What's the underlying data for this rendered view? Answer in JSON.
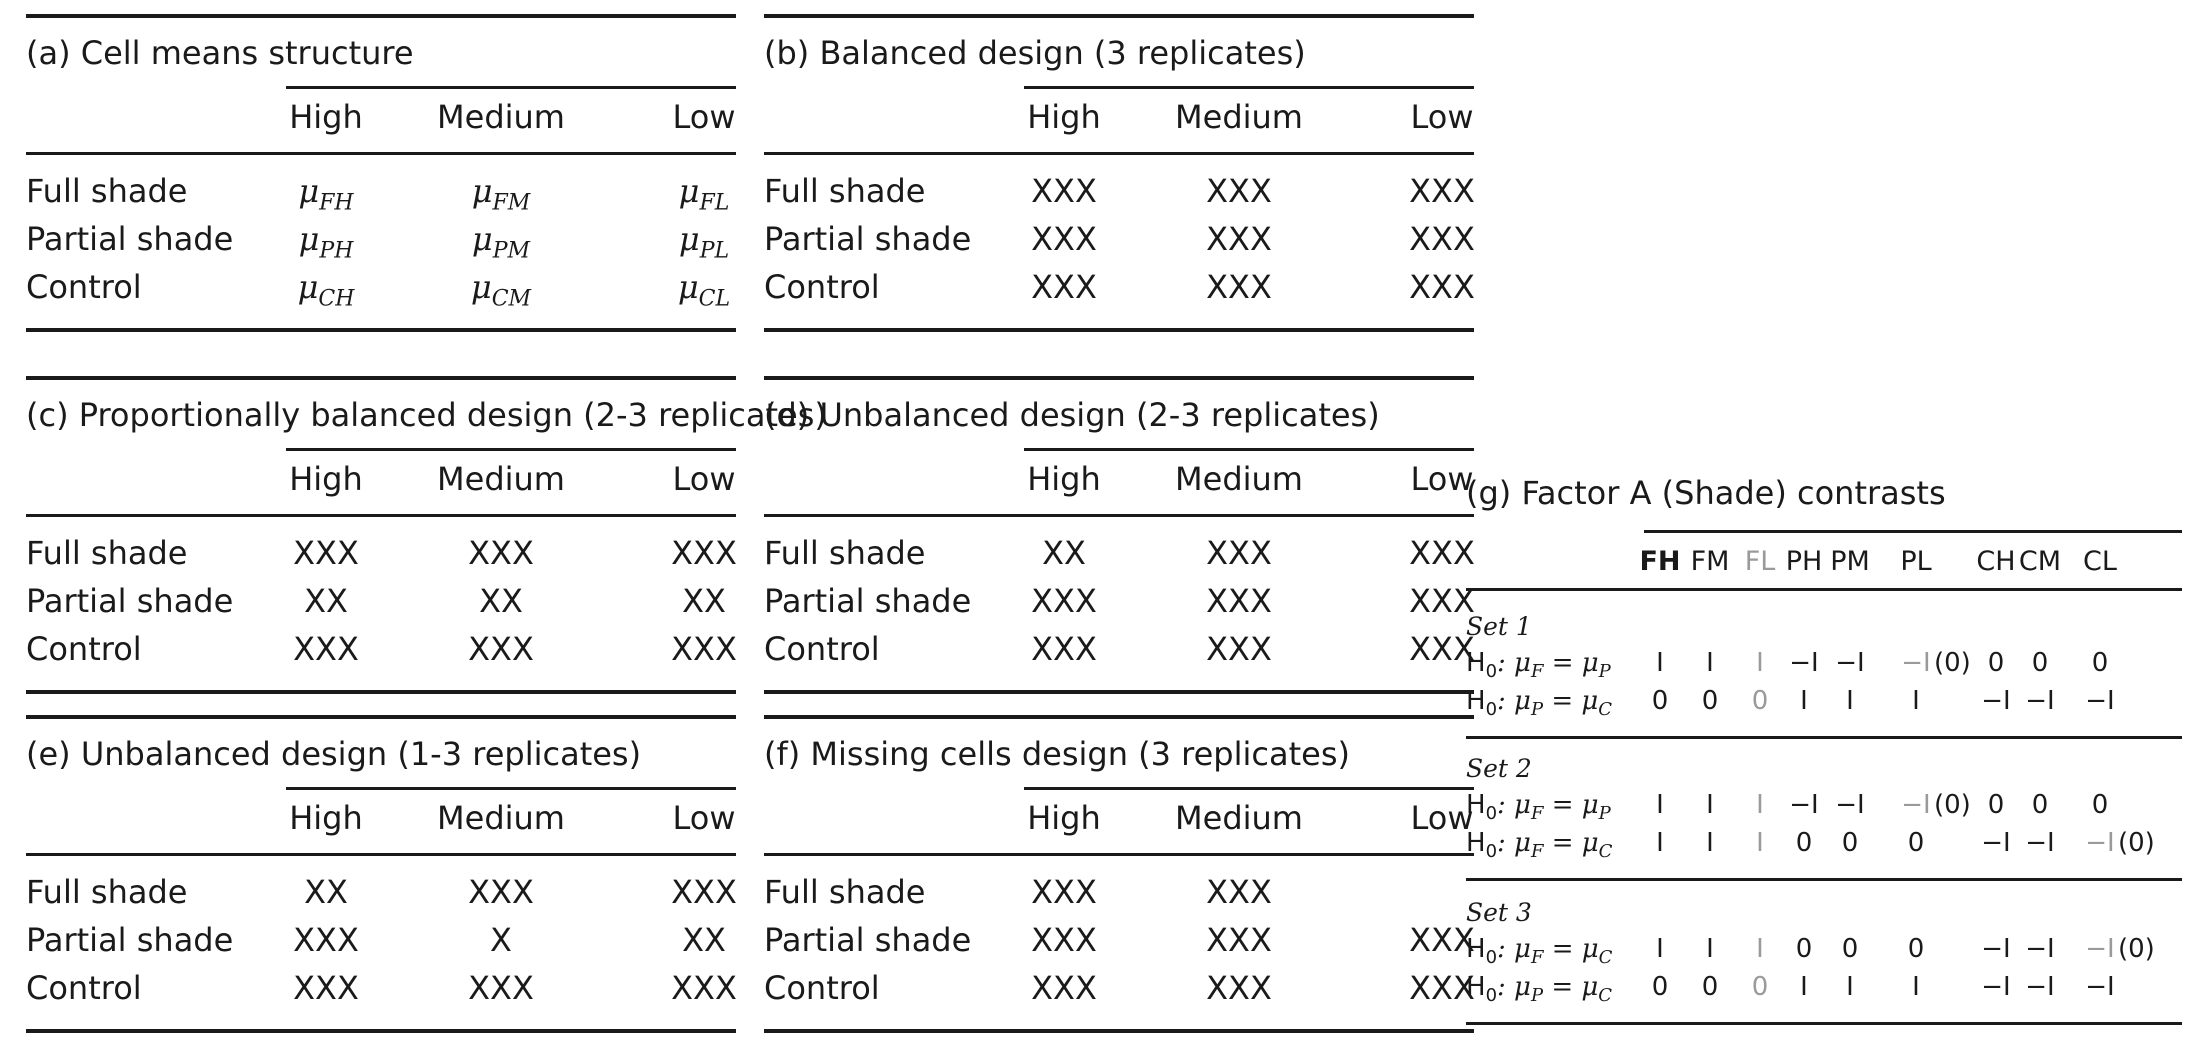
{
  "col_headers": [
    "High",
    "Medium",
    "Low"
  ],
  "row_labels": [
    "Full shade",
    "Partial shade",
    "Control"
  ],
  "panels": {
    "a": {
      "title": "(a) Cell means structure",
      "cells": [
        [
          "FH",
          "FM",
          "FL"
        ],
        [
          "PH",
          "PM",
          "PL"
        ],
        [
          "CH",
          "CM",
          "CL"
        ]
      ],
      "mu_symbol": "μ"
    },
    "b": {
      "title": "(b) Balanced design (3 replicates)",
      "cells": [
        [
          "XXX",
          "XXX",
          "XXX"
        ],
        [
          "XXX",
          "XXX",
          "XXX"
        ],
        [
          "XXX",
          "XXX",
          "XXX"
        ]
      ]
    },
    "c": {
      "title": "(c) Proportionally balanced design (2-3 replicates)",
      "cells": [
        [
          "XXX",
          "XXX",
          "XXX"
        ],
        [
          "XX",
          "XX",
          "XX"
        ],
        [
          "XXX",
          "XXX",
          "XXX"
        ]
      ]
    },
    "d": {
      "title": "(d) Unbalanced design (2-3 replicates)",
      "cells": [
        [
          "XX",
          "XXX",
          "XXX"
        ],
        [
          "XXX",
          "XXX",
          "XXX"
        ],
        [
          "XXX",
          "XXX",
          "XXX"
        ]
      ]
    },
    "e": {
      "title": "(e) Unbalanced design (1-3 replicates)",
      "cells": [
        [
          "XX",
          "XXX",
          "XXX"
        ],
        [
          "XXX",
          "X",
          "XX"
        ],
        [
          "XXX",
          "XXX",
          "XXX"
        ]
      ]
    },
    "f": {
      "title": "(f) Missing cells design (3 replicates)",
      "cells": [
        [
          "XXX",
          "XXX",
          ""
        ],
        [
          "XXX",
          "XXX",
          "XXX"
        ],
        [
          "XXX",
          "XXX",
          "XXX"
        ]
      ]
    }
  },
  "panel_g": {
    "title": "(g) Factor A (Shade) contrasts",
    "columns": [
      "FH",
      "FM",
      "FL",
      "PH",
      "PM",
      "PL",
      "CH",
      "CM",
      "CL"
    ],
    "h0_prefix": "H",
    "h0_sub": "0",
    "sets": [
      {
        "label": "Set 1",
        "rows": [
          {
            "lhs": "F",
            "rhs": "P",
            "values": [
              "I",
              "I",
              "I",
              "−I",
              "−I",
              "−I",
              "0",
              "0",
              "0"
            ],
            "zero_note": "(0)",
            "note_after": 5
          },
          {
            "lhs": "P",
            "rhs": "C",
            "values": [
              "0",
              "0",
              "0",
              "I",
              "I",
              "I",
              "−I",
              "−I",
              "−I"
            ]
          }
        ]
      },
      {
        "label": "Set 2",
        "rows": [
          {
            "lhs": "F",
            "rhs": "P",
            "values": [
              "I",
              "I",
              "I",
              "−I",
              "−I",
              "−I",
              "0",
              "0",
              "0"
            ],
            "zero_note": "(0)",
            "note_after": 5
          },
          {
            "lhs": "F",
            "rhs": "C",
            "values": [
              "I",
              "I",
              "I",
              "0",
              "0",
              "0",
              "−I",
              "−I",
              "−I"
            ],
            "zero_note": "(0)",
            "note_after": 8
          }
        ]
      },
      {
        "label": "Set 3",
        "rows": [
          {
            "lhs": "F",
            "rhs": "C",
            "values": [
              "I",
              "I",
              "I",
              "0",
              "0",
              "0",
              "−I",
              "−I",
              "−I"
            ],
            "zero_note": "(0)",
            "note_after": 8
          },
          {
            "lhs": "P",
            "rhs": "C",
            "values": [
              "0",
              "0",
              "0",
              "I",
              "I",
              "I",
              "−I",
              "−I",
              "−I"
            ]
          }
        ]
      }
    ]
  }
}
